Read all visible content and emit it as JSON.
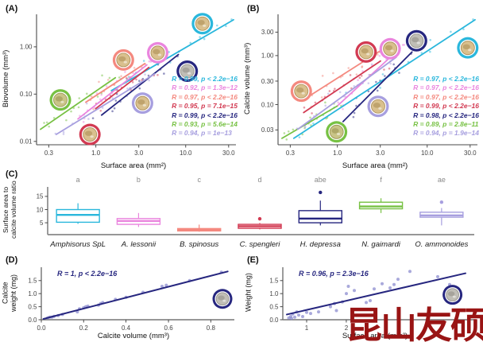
{
  "watermark": {
    "text": "昆山友硕",
    "color": "#991414"
  },
  "chart_data": [
    {
      "key": "A",
      "type": "scatter",
      "title": "(A)",
      "xlabel": "Surface area (mm²)",
      "ylabel": "Biovolume (mm³)",
      "xscale": "log",
      "yscale": "log",
      "xlim": [
        0.22,
        34
      ],
      "ylim": [
        0.0085,
        4.5
      ],
      "grid": false,
      "legend_position": "right-bottom-inside",
      "xticks": [
        {
          "label": "0.3",
          "f": 0.062
        },
        {
          "label": "1.0",
          "f": 0.301
        },
        {
          "label": "3.0",
          "f": 0.519
        },
        {
          "label": "10.0",
          "f": 0.757
        },
        {
          "label": "30.0",
          "f": 0.975
        }
      ],
      "yticks": [
        {
          "label": "0.01",
          "f": 0.026
        },
        {
          "label": "0.10",
          "f": 0.393
        },
        {
          "label": "1.00",
          "f": 0.76
        }
      ],
      "series": [
        {
          "species": "Amphisorus SpL",
          "color": "#2ab7dc",
          "line_f": [
            0.38,
            0.42,
            1.0,
            0.97
          ],
          "legend": "R = 0.99, p < 2.2e−16"
        },
        {
          "species": "A. lessonii",
          "color": "#ea85de",
          "line_f": [
            0.21,
            0.2,
            0.56,
            0.62
          ],
          "legend": "R = 0.92, p = 1.3e−12"
        },
        {
          "species": "B. spinosus",
          "color": "#f4897f",
          "line_f": [
            0.25,
            0.33,
            0.55,
            0.63
          ],
          "legend": "R = 0.97, p < 2.2e−16"
        },
        {
          "species": "C. spengleri",
          "color": "#d23a52",
          "line_f": [
            0.3,
            0.28,
            0.57,
            0.6
          ],
          "legend": "R = 0.95, p = 7.1e−15"
        },
        {
          "species": "H. depressa",
          "color": "#26267f",
          "line_f": [
            0.33,
            0.23,
            0.72,
            0.7
          ],
          "legend": "R = 0.99, p < 2.2e−16"
        },
        {
          "species": "N. gaimardi",
          "color": "#77c143",
          "line_f": [
            0.02,
            0.12,
            0.4,
            0.52
          ],
          "legend": "R = 0.93, p = 5.6e−14"
        },
        {
          "species": "O. ammonoides",
          "color": "#a79fdf",
          "line_f": [
            0.1,
            0.08,
            0.6,
            0.55
          ],
          "legend": "R = 0.94, p = 1e−13"
        }
      ],
      "icons": [
        {
          "species": "N. gaimardi",
          "ring": "#77c143",
          "fx": 0.121,
          "fy": 0.652,
          "shell": "green"
        },
        {
          "species": "B. spinosus",
          "ring": "#f4897f",
          "fx": 0.441,
          "fy": 0.342,
          "shell": "tan"
        },
        {
          "species": "C. spengleri",
          "ring": "#d23a52",
          "fx": 0.271,
          "fy": 0.92,
          "shell": "tan"
        },
        {
          "species": "A. lessonii",
          "ring": "#ea85de",
          "fx": 0.615,
          "fy": 0.286,
          "shell": "tan"
        },
        {
          "species": "Amphisorus SpL",
          "ring": "#2ab7dc",
          "fx": 0.842,
          "fy": 0.06,
          "shell": "tan"
        },
        {
          "species": "H. depressa",
          "ring": "#26267f",
          "fx": 0.765,
          "fy": 0.429,
          "shell": "grey"
        },
        {
          "species": "O. ammonoides",
          "ring": "#a79fdf",
          "fx": 0.538,
          "fy": 0.677,
          "shell": "tan"
        }
      ]
    },
    {
      "key": "B",
      "type": "scatter",
      "title": "(B)",
      "xlabel": "Surface area (mm²)",
      "ylabel": "Calcite volume (mm³)",
      "xscale": "log",
      "yscale": "log",
      "xlim": [
        0.22,
        34
      ],
      "ylim": [
        0.015,
        6.5
      ],
      "grid": false,
      "legend_position": "right-bottom-inside",
      "xticks": [
        {
          "label": "0.3",
          "f": 0.062
        },
        {
          "label": "1.0",
          "f": 0.301
        },
        {
          "label": "3.0",
          "f": 0.519
        },
        {
          "label": "10.0",
          "f": 0.757
        },
        {
          "label": "30.0",
          "f": 0.975
        }
      ],
      "yticks": [
        {
          "label": "0.03",
          "f": 0.115
        },
        {
          "label": "0.10",
          "f": 0.312
        },
        {
          "label": "0.30",
          "f": 0.494
        },
        {
          "label": "1.00",
          "f": 0.692
        },
        {
          "label": "3.00",
          "f": 0.874
        }
      ],
      "series": [
        {
          "species": "Amphisorus SpL",
          "color": "#2ab7dc",
          "line_f": [
            0.08,
            0.05,
            1.0,
            0.97
          ],
          "legend": "R = 0.97, p < 2.2e−16"
        },
        {
          "species": "A. lessonii",
          "color": "#ea85de",
          "line_f": [
            0.3,
            0.3,
            0.62,
            0.75
          ],
          "legend": "R = 0.97, p < 2.2e−16"
        },
        {
          "species": "B. spinosus",
          "color": "#f4897f",
          "line_f": [
            0.13,
            0.35,
            0.52,
            0.73
          ],
          "legend": "R = 0.97, p < 2.2e−16"
        },
        {
          "species": "C. spengleri",
          "color": "#d23a52",
          "line_f": [
            0.13,
            0.25,
            0.52,
            0.65
          ],
          "legend": "R = 0.99, p < 2.2e−16"
        },
        {
          "species": "H. depressa",
          "color": "#26267f",
          "line_f": [
            0.33,
            0.18,
            0.68,
            0.72
          ],
          "legend": "R = 0.98, p < 2.2e−16"
        },
        {
          "species": "N. gaimardi",
          "color": "#77c143",
          "line_f": [
            0.02,
            0.05,
            0.3,
            0.3
          ],
          "legend": "R = 0.89, p = 2.8e−11"
        },
        {
          "species": "O. ammonoides",
          "color": "#a79fdf",
          "line_f": [
            0.1,
            0.12,
            0.6,
            0.68
          ],
          "legend": "R = 0.94, p = 1.9e−14"
        }
      ],
      "icons": [
        {
          "species": "B. spinosus",
          "ring": "#f4897f",
          "fx": 0.118,
          "fy": 0.584,
          "shell": "tan"
        },
        {
          "species": "C. spengleri",
          "ring": "#d23a52",
          "fx": 0.447,
          "fy": 0.28,
          "shell": "tan"
        },
        {
          "species": "A. lessonii",
          "ring": "#ea85de",
          "fx": 0.569,
          "fy": 0.255,
          "shell": "tan"
        },
        {
          "species": "H. depressa",
          "ring": "#26267f",
          "fx": 0.703,
          "fy": 0.193,
          "shell": "grey"
        },
        {
          "species": "Amphisorus SpL",
          "ring": "#2ab7dc",
          "fx": 0.963,
          "fy": 0.248,
          "shell": "tan"
        },
        {
          "species": "O. ammonoides",
          "ring": "#a79fdf",
          "fx": 0.508,
          "fy": 0.702,
          "shell": "tan"
        },
        {
          "species": "N. gaimardi",
          "ring": "#77c143",
          "fx": 0.297,
          "fy": 0.9,
          "shell": "green"
        }
      ]
    },
    {
      "key": "C",
      "type": "box",
      "title": "(C)",
      "ylabel": "Surface area to calcite volume ratio",
      "ylabel_lines": [
        "Surface area to",
        "calcite volume ratio"
      ],
      "ylim": [
        0.5,
        18
      ],
      "yticks": [
        {
          "label": "5",
          "f": 0.257
        },
        {
          "label": "10",
          "f": 0.543
        },
        {
          "label": "15",
          "f": 0.829
        }
      ],
      "boxes": [
        {
          "name": "Amphisorus SpL",
          "letter": "a",
          "color": "#2ab7dc",
          "lo": 4.6,
          "q1": 5.2,
          "med": 8.0,
          "q3": 10.0,
          "hi": 12.4,
          "outliers": []
        },
        {
          "name": "A. lessonii",
          "letter": "b",
          "color": "#ea85de",
          "lo": 3.4,
          "q1": 4.4,
          "med": 5.7,
          "q3": 6.6,
          "hi": 8.7,
          "outliers": []
        },
        {
          "name": "B. spinosus",
          "letter": "c",
          "color": "#f4897f",
          "lo": 1.6,
          "q1": 1.9,
          "med": 2.3,
          "q3": 2.8,
          "hi": 4.3,
          "outliers": []
        },
        {
          "name": "C. spengleri",
          "letter": "d",
          "color": "#d23a52",
          "lo": 2.5,
          "q1": 2.9,
          "med": 3.7,
          "q3": 4.4,
          "hi": 4.9,
          "outliers": [
            6.5
          ]
        },
        {
          "name": "H. depressa",
          "letter": "abe",
          "color": "#26267f",
          "lo": 4.0,
          "q1": 5.0,
          "med": 6.6,
          "q3": 9.6,
          "hi": 13.4,
          "outliers": [
            16.5
          ]
        },
        {
          "name": "N. gaimardi",
          "letter": "f",
          "color": "#77c143",
          "lo": 8.7,
          "q1": 10.3,
          "med": 11.2,
          "q3": 12.8,
          "hi": 14.3,
          "outliers": []
        },
        {
          "name": "O. ammonoides",
          "letter": "ae",
          "color": "#a79fdf",
          "lo": 4.0,
          "q1": 7.1,
          "med": 7.8,
          "q3": 9.0,
          "hi": 10.6,
          "outliers": [
            12.8
          ]
        }
      ]
    },
    {
      "key": "D",
      "type": "points",
      "title": "(D)",
      "xlabel": "Calcite volume (mm³)",
      "ylabel": "Calcite weight (mg)",
      "ylabel_lines": [
        "Calcite",
        "weight (mg)"
      ],
      "annotation": "R = 1, p < 2.2e−16",
      "line_color": "#26267f",
      "point_color": "#8585cc",
      "xlim": [
        0,
        0.9
      ],
      "ylim": [
        0,
        1.95
      ],
      "xticks": [
        {
          "label": "0.0",
          "f": 0.0
        },
        {
          "label": "0.2",
          "f": 0.222
        },
        {
          "label": "0.4",
          "f": 0.444
        },
        {
          "label": "0.6",
          "f": 0.667
        },
        {
          "label": "0.8",
          "f": 0.889
        }
      ],
      "yticks": [
        {
          "label": "0.0",
          "f": 0.0
        },
        {
          "label": "0.5",
          "f": 0.256
        },
        {
          "label": "1.0",
          "f": 0.513
        },
        {
          "label": "1.5",
          "f": 0.769
        }
      ],
      "line": [
        [
          0.01,
          0.03
        ],
        [
          0.88,
          1.85
        ]
      ],
      "points": [
        [
          0.03,
          0.07
        ],
        [
          0.04,
          0.1
        ],
        [
          0.05,
          0.1
        ],
        [
          0.06,
          0.13
        ],
        [
          0.08,
          0.16
        ],
        [
          0.1,
          0.2
        ],
        [
          0.17,
          0.3
        ],
        [
          0.18,
          0.42
        ],
        [
          0.2,
          0.46
        ],
        [
          0.21,
          0.5
        ],
        [
          0.22,
          0.52
        ],
        [
          0.27,
          0.56
        ],
        [
          0.28,
          0.62
        ],
        [
          0.29,
          0.66
        ],
        [
          0.35,
          0.78
        ],
        [
          0.4,
          0.86
        ],
        [
          0.48,
          1.05
        ],
        [
          0.57,
          1.28
        ],
        [
          0.59,
          1.32
        ],
        [
          0.7,
          1.5
        ],
        [
          0.85,
          1.82
        ]
      ],
      "icon": {
        "species": "H. depressa",
        "ring": "#26267f",
        "fx": 0.95,
        "fy": 0.59,
        "shell": "grey"
      }
    },
    {
      "key": "E",
      "type": "points",
      "title": "(E)",
      "xlabel": "Surface area (mm²)",
      "ylabel": "Weight (mg)",
      "ylabel_lines": [
        "Weight (mg)"
      ],
      "annotation": "R = 0.96, p = 2.3e−16",
      "line_color": "#26267f",
      "point_color": "#8585cc",
      "xlim": [
        0.4,
        5.2
      ],
      "ylim": [
        0,
        1.95
      ],
      "xticks": [
        {
          "label": "1",
          "f": 0.125
        },
        {
          "label": "2",
          "f": 0.333
        },
        {
          "label": "3",
          "f": 0.542
        }
      ],
      "yticks": [
        {
          "label": "0.0",
          "f": 0.0
        },
        {
          "label": "0.5",
          "f": 0.256
        },
        {
          "label": "1.0",
          "f": 0.513
        },
        {
          "label": "1.5",
          "f": 0.769
        }
      ],
      "line": [
        [
          0.5,
          0.2
        ],
        [
          5.0,
          1.78
        ]
      ],
      "points": [
        [
          0.55,
          0.07
        ],
        [
          0.6,
          0.12
        ],
        [
          0.62,
          0.05
        ],
        [
          0.65,
          0.22
        ],
        [
          0.7,
          0.1
        ],
        [
          0.75,
          0.3
        ],
        [
          0.8,
          0.18
        ],
        [
          0.9,
          0.12
        ],
        [
          1.0,
          0.28
        ],
        [
          1.1,
          0.24
        ],
        [
          1.3,
          0.3
        ],
        [
          1.6,
          0.5
        ],
        [
          1.7,
          0.62
        ],
        [
          1.75,
          0.35
        ],
        [
          1.9,
          0.68
        ],
        [
          2.0,
          1.0
        ],
        [
          2.05,
          1.28
        ],
        [
          2.2,
          1.12
        ],
        [
          2.5,
          0.66
        ],
        [
          2.6,
          0.73
        ],
        [
          2.7,
          1.18
        ],
        [
          2.9,
          1.38
        ],
        [
          3.1,
          1.22
        ],
        [
          3.2,
          1.35
        ],
        [
          3.3,
          1.55
        ],
        [
          3.6,
          1.85
        ],
        [
          4.3,
          1.65
        ],
        [
          4.6,
          1.35
        ]
      ],
      "icon": {
        "species": "H. depressa",
        "ring": "#26267f",
        "fx": 0.89,
        "fy": 0.51,
        "shell": "grey"
      }
    }
  ]
}
